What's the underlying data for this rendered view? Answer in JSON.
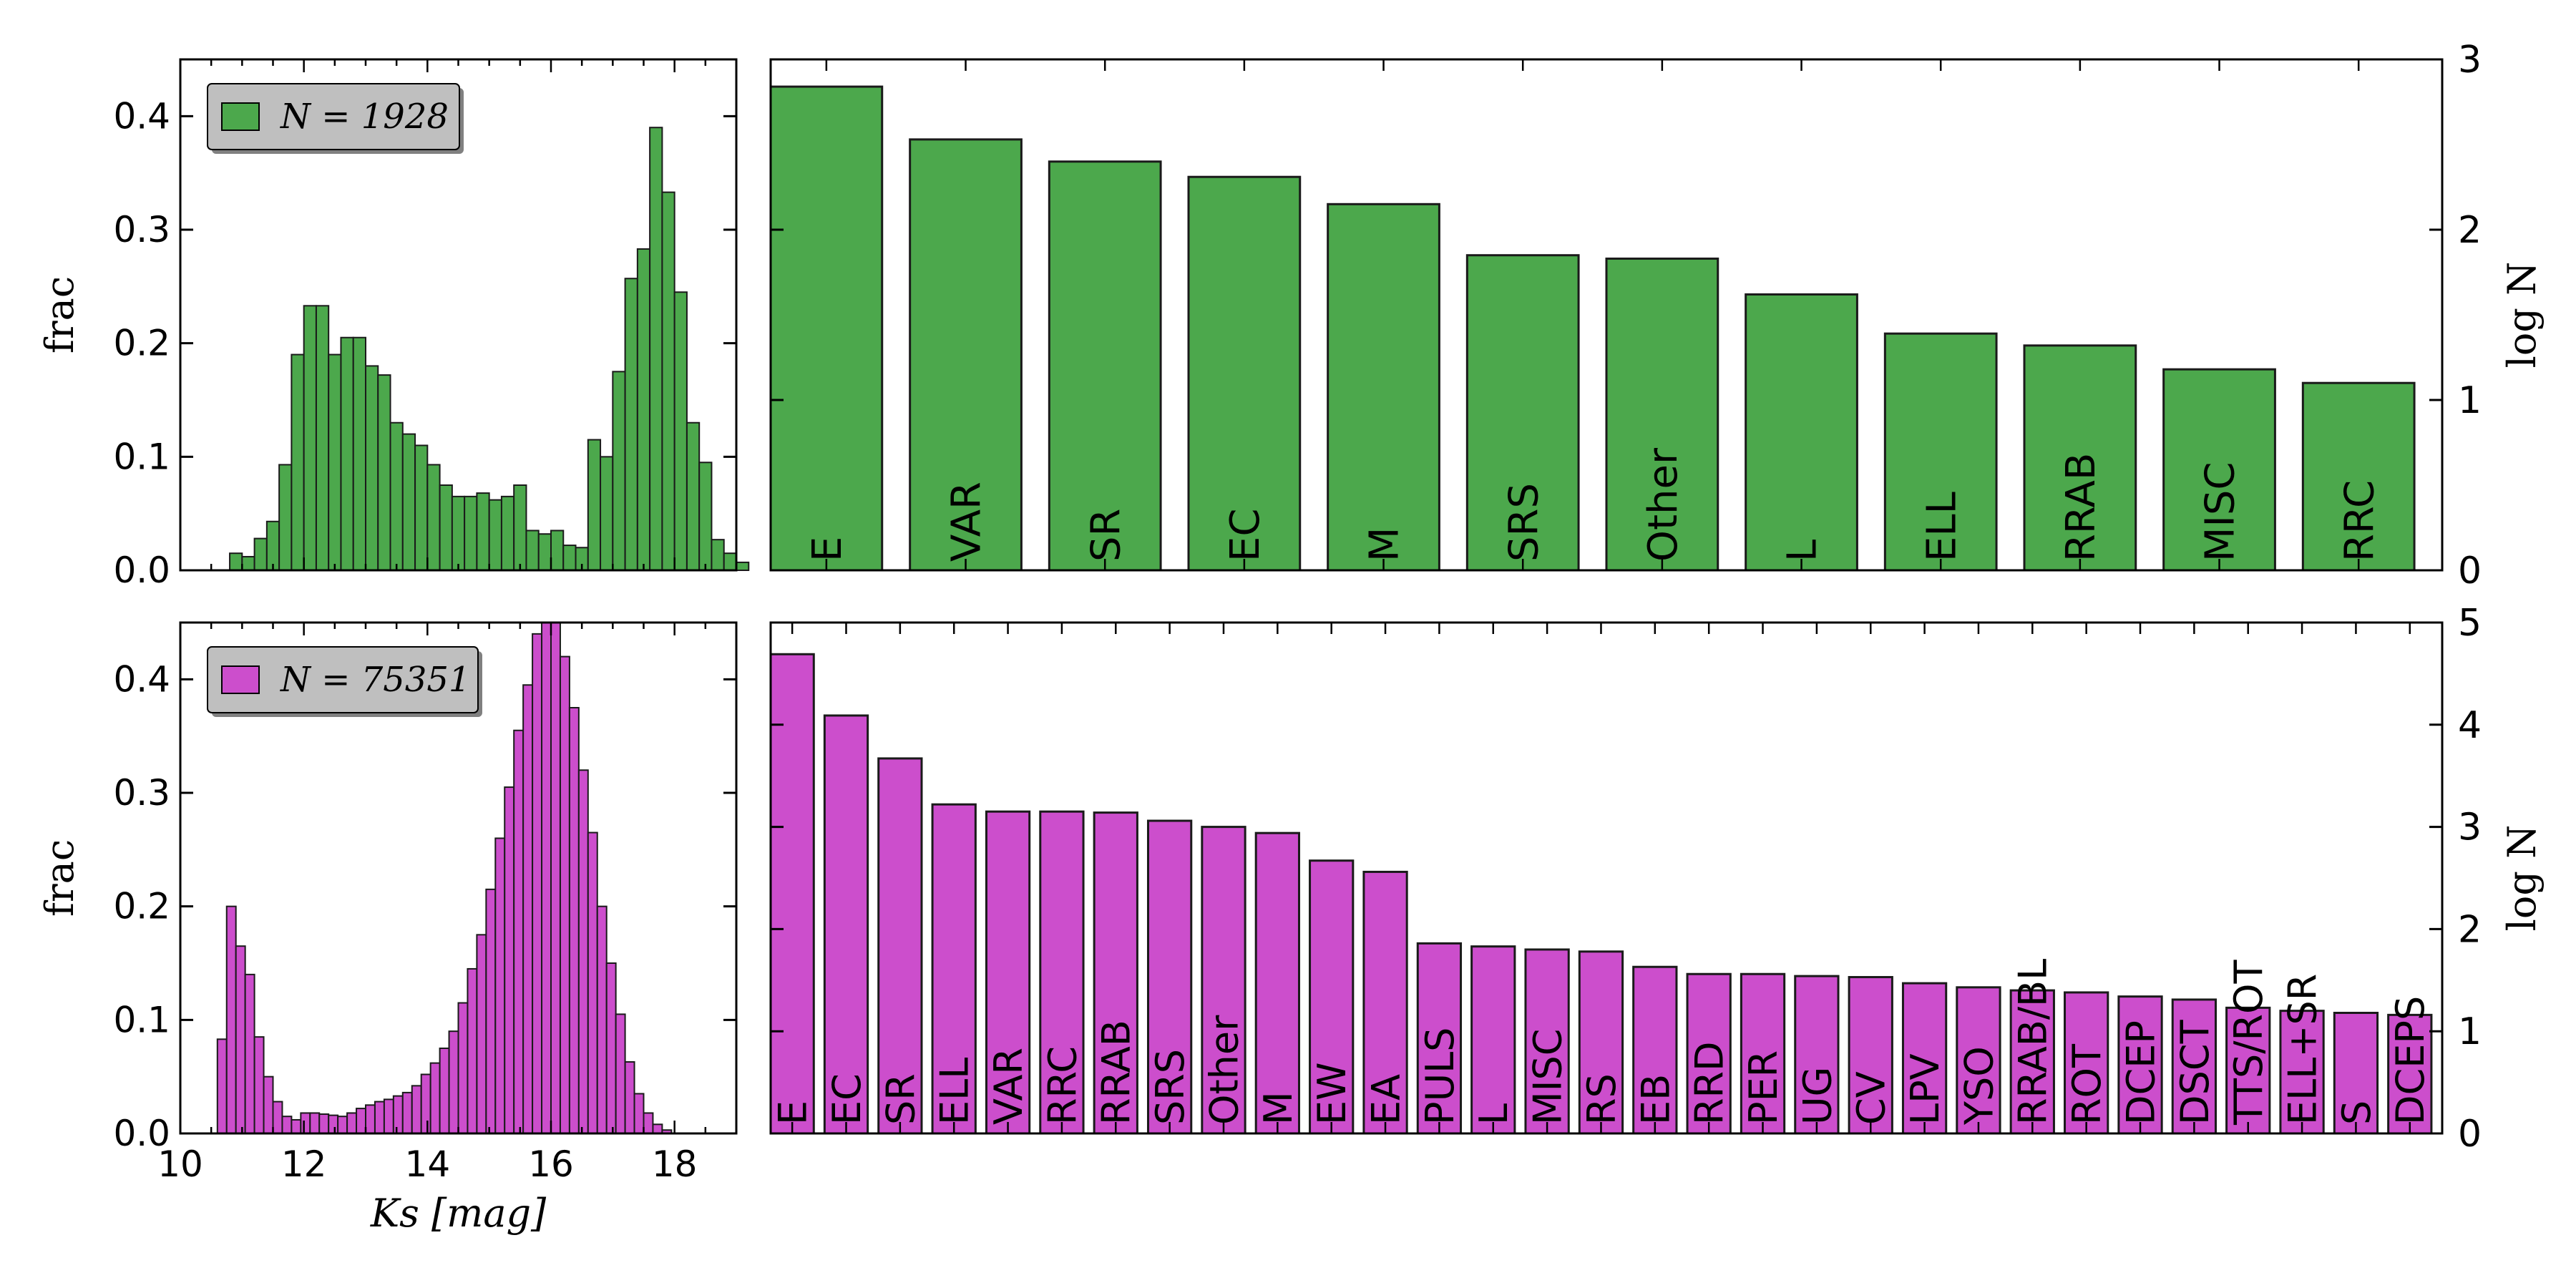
{
  "colors": {
    "green": "#4CA84C",
    "magenta": "#CC4ECC",
    "edge": "#1a1a1a",
    "legend_bg": "#bfbfbf"
  },
  "chart_data": [
    {
      "id": "hist_top",
      "type": "bar",
      "subtype": "histogram",
      "color": "#4CA84C",
      "legend": {
        "label": "N = 1928",
        "position": "upper-left",
        "shadow": true
      },
      "ylabel": "frac",
      "xlabel": "",
      "xlim": [
        10,
        19
      ],
      "ylim": [
        0,
        0.45
      ],
      "yticks": [
        "0.0",
        "0.1",
        "0.2",
        "0.3",
        "0.4"
      ],
      "xticks": [
        10,
        12,
        14,
        16,
        18
      ],
      "show_xtick_labels": false,
      "bin_start": 10.8,
      "bin_width": 0.2,
      "values": [
        0.015,
        0.012,
        0.028,
        0.043,
        0.093,
        0.19,
        0.233,
        0.233,
        0.19,
        0.205,
        0.205,
        0.18,
        0.172,
        0.13,
        0.12,
        0.11,
        0.093,
        0.075,
        0.065,
        0.065,
        0.068,
        0.062,
        0.065,
        0.075,
        0.035,
        0.032,
        0.035,
        0.022,
        0.02,
        0.115,
        0.1,
        0.175,
        0.257,
        0.283,
        0.39,
        0.333,
        0.245,
        0.13,
        0.095,
        0.027,
        0.015,
        0.007
      ]
    },
    {
      "id": "bar_top",
      "type": "bar",
      "color": "#4CA84C",
      "ylabel": "log N",
      "ylim": [
        0,
        3
      ],
      "yticks": [
        "0",
        "1",
        "2",
        "3"
      ],
      "yaxis_side": "right",
      "categories": [
        "E",
        "VAR",
        "SR",
        "EC",
        "M",
        "SRS",
        "Other",
        "L",
        "ELL",
        "RRAB",
        "MISC",
        "RRC"
      ],
      "values": [
        2.84,
        2.53,
        2.4,
        2.31,
        2.15,
        1.85,
        1.83,
        1.62,
        1.39,
        1.32,
        1.18,
        1.1
      ]
    },
    {
      "id": "hist_bottom",
      "type": "bar",
      "subtype": "histogram",
      "color": "#CC4ECC",
      "legend": {
        "label": "N = 75351",
        "position": "upper-left",
        "shadow": true
      },
      "ylabel": "frac",
      "xlabel": "Ks [mag]",
      "xlim": [
        10,
        19
      ],
      "ylim": [
        0,
        0.45
      ],
      "yticks": [
        "0.0",
        "0.1",
        "0.2",
        "0.3",
        "0.4"
      ],
      "xticks": [
        "10",
        "12",
        "14",
        "16",
        "18"
      ],
      "show_xtick_labels": true,
      "bin_start": 10.6,
      "bin_width": 0.15,
      "values": [
        0.083,
        0.2,
        0.165,
        0.14,
        0.085,
        0.05,
        0.028,
        0.015,
        0.012,
        0.018,
        0.018,
        0.017,
        0.016,
        0.015,
        0.018,
        0.022,
        0.025,
        0.028,
        0.03,
        0.033,
        0.036,
        0.042,
        0.052,
        0.062,
        0.075,
        0.09,
        0.115,
        0.145,
        0.175,
        0.215,
        0.26,
        0.305,
        0.355,
        0.395,
        0.44,
        0.45,
        0.45,
        0.42,
        0.375,
        0.32,
        0.265,
        0.2,
        0.15,
        0.105,
        0.063,
        0.035,
        0.018,
        0.008,
        0.003
      ]
    },
    {
      "id": "bar_bottom",
      "type": "bar",
      "color": "#CC4ECC",
      "ylabel": "log N",
      "ylim": [
        0,
        5
      ],
      "yticks": [
        "0",
        "1",
        "2",
        "3",
        "4",
        "5"
      ],
      "yaxis_side": "right",
      "categories": [
        "E",
        "EC",
        "SR",
        "ELL",
        "VAR",
        "RRC",
        "RRAB",
        "SRS",
        "Other",
        "M",
        "EW",
        "EA",
        "PULS",
        "L",
        "MISC",
        "RS",
        "EB",
        "RRD",
        "PER",
        "UG",
        "CV",
        "LPV",
        "YSO",
        "RRAB/BL",
        "ROT",
        "DCEP",
        "DSCT",
        "TTS/ROT",
        "ELL+SR",
        "S",
        "DCEPS"
      ],
      "values": [
        4.69,
        4.09,
        3.67,
        3.22,
        3.15,
        3.15,
        3.14,
        3.06,
        3.0,
        2.94,
        2.67,
        2.56,
        1.86,
        1.83,
        1.8,
        1.78,
        1.63,
        1.56,
        1.56,
        1.54,
        1.53,
        1.47,
        1.43,
        1.4,
        1.38,
        1.34,
        1.31,
        1.23,
        1.2,
        1.18,
        1.16
      ]
    }
  ]
}
